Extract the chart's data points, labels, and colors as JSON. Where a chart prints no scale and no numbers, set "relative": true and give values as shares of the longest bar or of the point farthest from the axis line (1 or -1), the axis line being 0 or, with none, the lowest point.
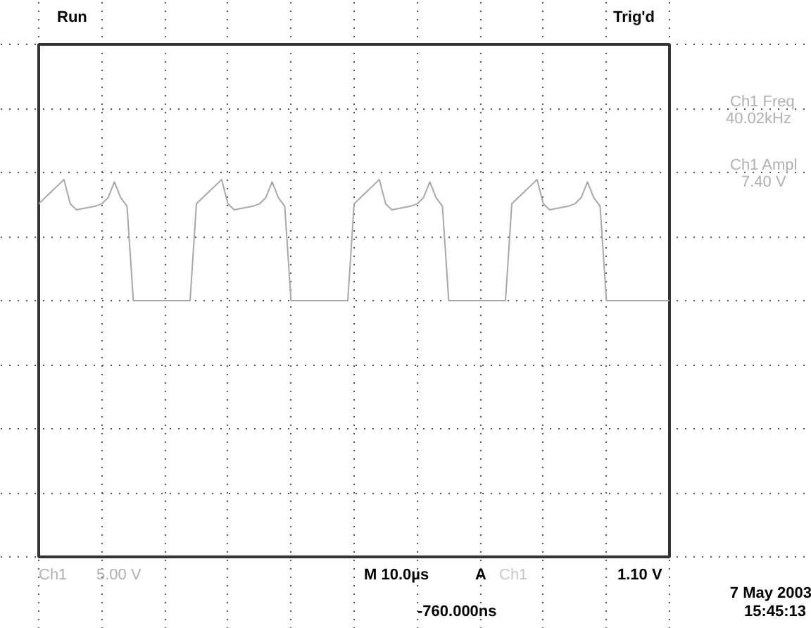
{
  "chart_data": {
    "type": "line",
    "relative": true,
    "grid": true,
    "line_style": "solid",
    "marker": "none",
    "color": "#a8a8a8",
    "categories": [
      null,
      null,
      null,
      null,
      null,
      null,
      null,
      null,
      null,
      null,
      null,
      null,
      null,
      null,
      null,
      null,
      null,
      null,
      null,
      null,
      null,
      null,
      null,
      null,
      null,
      null,
      null,
      null,
      null,
      null,
      null,
      null,
      null,
      null,
      null,
      null,
      null,
      null,
      null,
      null,
      null,
      null,
      null,
      null,
      null,
      null,
      null,
      null,
      null,
      null,
      null,
      null,
      null,
      null,
      null,
      null,
      null,
      null,
      null,
      null,
      null,
      null,
      null,
      null,
      null,
      null,
      null,
      null,
      null,
      null,
      null,
      null,
      null,
      null,
      null,
      null,
      null,
      null,
      null,
      null,
      null,
      null,
      null,
      null,
      null,
      null,
      null,
      null,
      null,
      null,
      null,
      null,
      null,
      null,
      null,
      null,
      null,
      null,
      null,
      null,
      null
    ],
    "values": [
      0.8,
      0.85,
      0.9,
      0.95,
      1.0,
      0.8,
      0.75,
      0.76,
      0.77,
      0.78,
      0.8,
      0.85,
      0.98,
      0.85,
      0.78,
      0,
      0,
      0,
      0,
      0,
      0,
      0,
      0,
      0,
      0,
      0.8,
      0.85,
      0.9,
      0.95,
      1.0,
      0.8,
      0.75,
      0.76,
      0.77,
      0.78,
      0.8,
      0.85,
      0.98,
      0.85,
      0.78,
      0,
      0,
      0,
      0,
      0,
      0,
      0,
      0,
      0,
      0,
      0.8,
      0.85,
      0.9,
      0.95,
      1.0,
      0.8,
      0.75,
      0.76,
      0.77,
      0.78,
      0.8,
      0.85,
      0.98,
      0.85,
      0.78,
      0,
      0,
      0,
      0,
      0,
      0,
      0,
      0,
      0,
      0,
      0.8,
      0.85,
      0.9,
      0.95,
      1.0,
      0.8,
      0.75,
      0.76,
      0.77,
      0.78,
      0.8,
      0.85,
      0.98,
      0.85,
      0.78,
      0,
      0,
      0,
      0,
      0,
      0,
      0,
      0,
      0,
      0,
      0
    ],
    "annotations": [
      "Run",
      "Trig'd",
      "Ch1 Freq",
      "40.02kHz",
      "Ch1 Ampl",
      "7.40 V",
      "Ch1",
      "5.00 V",
      "M 10.0µs",
      "A",
      "Ch1",
      "1.10 V",
      "-760.000ns",
      "7 May 2003",
      "15:45:13"
    ]
  }
}
